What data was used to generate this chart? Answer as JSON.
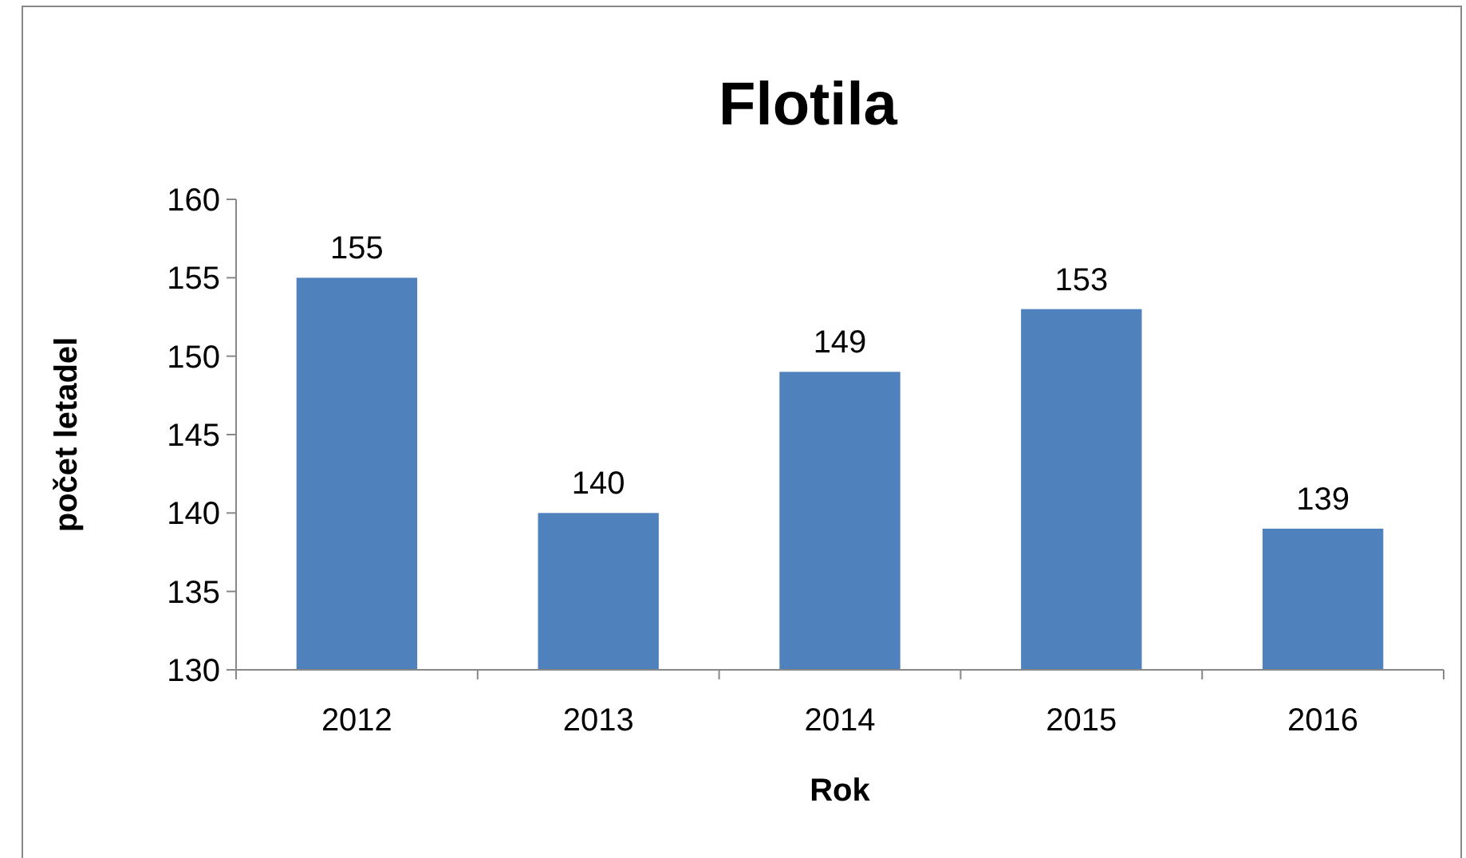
{
  "chart_data": {
    "type": "bar",
    "title": "Flotila",
    "xlabel": "Rok",
    "ylabel": "počet letadel",
    "categories": [
      "2012",
      "2013",
      "2014",
      "2015",
      "2016"
    ],
    "values": [
      155,
      140,
      149,
      153,
      139
    ],
    "color": "#4f81bd",
    "ylim": [
      130,
      160
    ],
    "yticks": [
      130,
      135,
      140,
      145,
      150,
      155,
      160
    ],
    "grid": false,
    "data_labels": true
  }
}
